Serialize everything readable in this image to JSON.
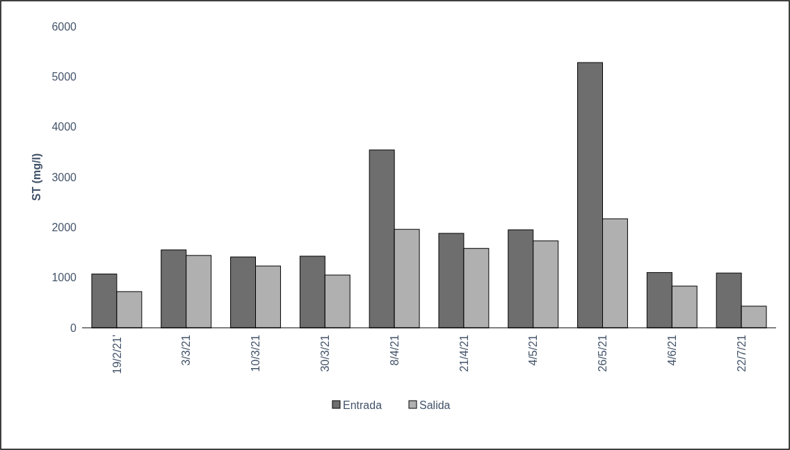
{
  "chart_data": {
    "type": "bar",
    "ylabel": "ST (mg/l)",
    "categories": [
      "19/2/21'",
      "3/3/21",
      "10/3/21",
      "30/3/21",
      "8/4/21",
      "21/4/21",
      "4/5/21",
      "26/5/21",
      "4/6/21",
      "22/7/21"
    ],
    "series": [
      {
        "name": "Entrada",
        "color": "#6e6e6e",
        "values": [
          1070,
          1550,
          1410,
          1425,
          3540,
          1880,
          1950,
          5280,
          1100,
          1090
        ]
      },
      {
        "name": "Salida",
        "color": "#b0b0b0",
        "values": [
          720,
          1440,
          1230,
          1050,
          1960,
          1580,
          1730,
          2170,
          830,
          430
        ]
      }
    ],
    "ylim": [
      0,
      6000
    ],
    "yticks": [
      0,
      1000,
      2000,
      3000,
      4000,
      5000,
      6000
    ],
    "grid": false,
    "legend": "bottom"
  }
}
